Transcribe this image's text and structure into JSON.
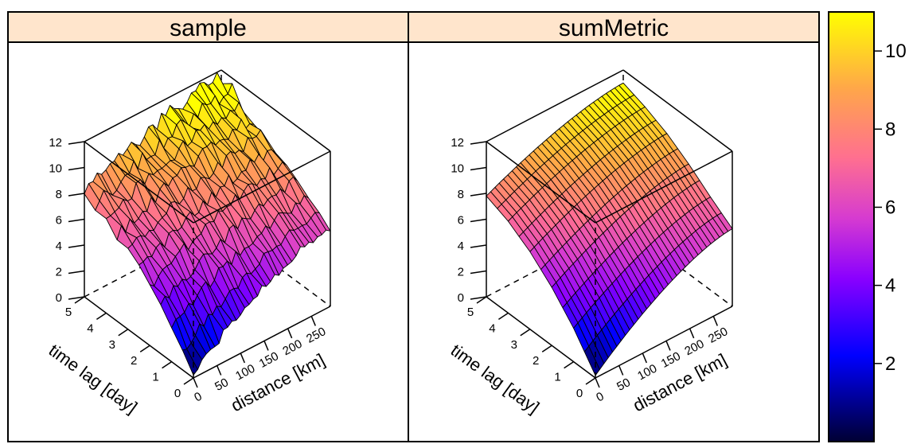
{
  "chart_data": [
    {
      "type": "surface",
      "panel_id": "sample",
      "title": "sample",
      "xlabel": "distance [km]",
      "ylabel": "time lag [day]",
      "x_ticks": [
        0,
        50,
        100,
        150,
        200,
        250
      ],
      "y_ticks": [
        0,
        1,
        2,
        3,
        4,
        5
      ],
      "z_ticks": [
        0,
        2,
        4,
        6,
        8,
        10,
        12
      ],
      "xlim": [
        0,
        290
      ],
      "ylim": [
        0,
        5
      ],
      "zlim": [
        0,
        12
      ],
      "grid": false,
      "surface": {
        "description_values_by_time_lag": [
          {
            "time_lag": 0,
            "start": 0.3,
            "end": 6.0,
            "noise": 0.35
          },
          {
            "time_lag": 1,
            "start": 2.8,
            "end": 7.2,
            "noise": 0.4
          },
          {
            "time_lag": 2,
            "start": 4.6,
            "end": 8.6,
            "noise": 0.45
          },
          {
            "time_lag": 3,
            "start": 6.0,
            "end": 9.7,
            "noise": 0.5
          },
          {
            "time_lag": 4,
            "start": 7.2,
            "end": 10.6,
            "noise": 0.55
          },
          {
            "time_lag": 5,
            "start": 8.0,
            "end": 11.5,
            "noise": 0.6
          }
        ]
      }
    },
    {
      "type": "surface",
      "panel_id": "sumMetric",
      "title": "sumMetric",
      "xlabel": "distance [km]",
      "ylabel": "time lag [day]",
      "x_ticks": [
        0,
        50,
        100,
        150,
        200,
        250
      ],
      "y_ticks": [
        0,
        1,
        2,
        3,
        4,
        5
      ],
      "z_ticks": [
        0,
        2,
        4,
        6,
        8,
        10,
        12
      ],
      "xlim": [
        0,
        290
      ],
      "ylim": [
        0,
        5
      ],
      "zlim": [
        0,
        12
      ],
      "grid": false,
      "surface": {
        "description_values_by_time_lag": [
          {
            "time_lag": 0,
            "start": 0.2,
            "end": 6.0,
            "noise": 0.0
          },
          {
            "time_lag": 1,
            "start": 2.6,
            "end": 7.2,
            "noise": 0.0
          },
          {
            "time_lag": 2,
            "start": 4.5,
            "end": 8.5,
            "noise": 0.0
          },
          {
            "time_lag": 3,
            "start": 6.0,
            "end": 9.6,
            "noise": 0.0
          },
          {
            "time_lag": 4,
            "start": 7.1,
            "end": 10.4,
            "noise": 0.0
          },
          {
            "time_lag": 5,
            "start": 7.8,
            "end": 11.0,
            "noise": 0.0
          }
        ]
      }
    }
  ],
  "colorbar": {
    "ticks": [
      2,
      4,
      6,
      8,
      10
    ],
    "range": [
      0,
      11
    ],
    "colors": [
      "#000033",
      "#0000ff",
      "#8a00ff",
      "#d63bd0",
      "#ff6f90",
      "#ffa64a",
      "#ffff00"
    ]
  },
  "colors": {
    "strip_bg": "#ffe5cc",
    "border": "#000000"
  }
}
